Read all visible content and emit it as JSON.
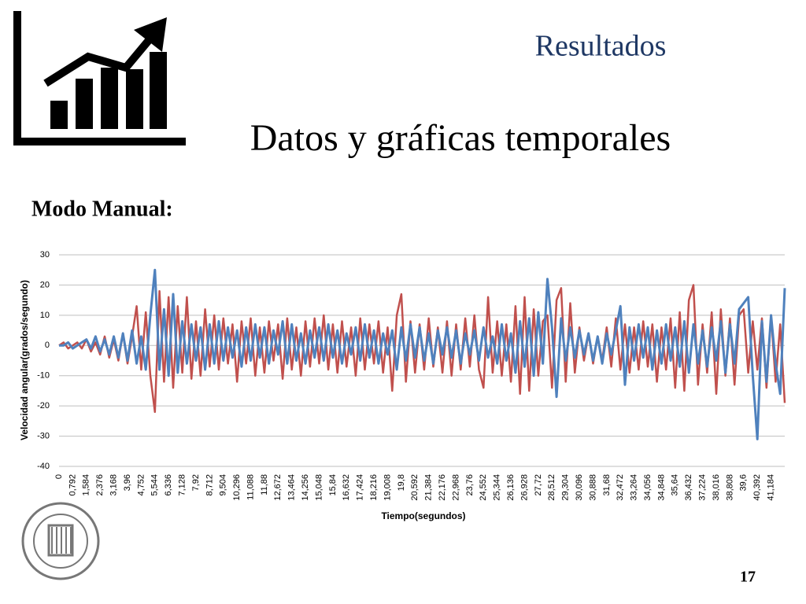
{
  "header": {
    "section": "Resultados",
    "title": "Datos y gráficas temporales",
    "subtitle": "Modo Manual:",
    "page_number": "17"
  },
  "chart_data": {
    "type": "line",
    "x_label": "Tiempo(segundos)",
    "y_label": "Velocidad angular(grados/segundo)",
    "categories": [
      "0",
      null,
      null,
      "0,792",
      null,
      null,
      "1,584",
      null,
      null,
      "2,376",
      null,
      null,
      "3,168",
      null,
      null,
      "3,96",
      null,
      null,
      "4,752",
      null,
      null,
      "5,544",
      null,
      null,
      "6,336",
      null,
      null,
      "7,128",
      null,
      null,
      "7,92",
      null,
      null,
      "8,712",
      null,
      null,
      "9,504",
      null,
      null,
      "10,296",
      null,
      null,
      "11,088",
      null,
      null,
      "11,88",
      null,
      null,
      "12,672",
      null,
      null,
      "13,464",
      null,
      null,
      "14,256",
      null,
      null,
      "15,048",
      null,
      null,
      "15,84",
      null,
      null,
      "16,632",
      null,
      null,
      "17,424",
      null,
      null,
      "18,216",
      null,
      null,
      "19,008",
      null,
      null,
      "19,8",
      null,
      null,
      "20,592",
      null,
      null,
      "21,384",
      null,
      null,
      "22,176",
      null,
      null,
      "22,968",
      null,
      null,
      "23,76",
      null,
      null,
      "24,552",
      null,
      null,
      "25,344",
      null,
      null,
      "26,136",
      null,
      null,
      "26,928",
      null,
      null,
      "27,72",
      null,
      null,
      "28,512",
      null,
      null,
      "29,304",
      null,
      null,
      "30,096",
      null,
      null,
      "30,888",
      null,
      null,
      "31,68",
      null,
      null,
      "32,472",
      null,
      null,
      "33,264",
      null,
      null,
      "34,056",
      null,
      null,
      "34,848",
      null,
      null,
      "35,64",
      null,
      null,
      "36,432",
      null,
      null,
      "37,224",
      null,
      null,
      "38,016",
      null,
      null,
      "38,808",
      null,
      null,
      "39,6",
      null,
      null,
      "40,392",
      null,
      null,
      "41,184",
      null,
      null,
      null
    ],
    "series": [
      {
        "color": "#c0504d",
        "values": [
          0,
          1,
          -1,
          0,
          1,
          -1,
          2,
          -2,
          1,
          -3,
          3,
          -4,
          2,
          -5,
          4,
          -6,
          3,
          13,
          -8,
          11,
          -10,
          -22,
          18,
          -12,
          16,
          -14,
          13,
          -9,
          16,
          -11,
          8,
          -10,
          12,
          -7,
          10,
          -8,
          9,
          -6,
          7,
          -12,
          8,
          -6,
          9,
          -10,
          6,
          -9,
          8,
          -5,
          7,
          -11,
          9,
          -8,
          6,
          -10,
          8,
          -7,
          9,
          -6,
          10,
          -8,
          7,
          -9,
          8,
          -7,
          6,
          -10,
          9,
          -8,
          7,
          -6,
          8,
          -9,
          6,
          -15,
          10,
          17,
          -12,
          8,
          -9,
          7,
          -8,
          9,
          -7,
          6,
          -9,
          8,
          -10,
          7,
          -8,
          9,
          -7,
          10,
          -8,
          -14,
          16,
          -9,
          8,
          -10,
          7,
          -12,
          13,
          -16,
          16,
          -15,
          12,
          -10,
          8,
          10,
          -14,
          15,
          19,
          -12,
          14,
          -9,
          6,
          -5,
          4,
          -6,
          3,
          -5,
          6,
          -7,
          9,
          -8,
          7,
          -9,
          6,
          -8,
          8,
          -7,
          7,
          -12,
          6,
          -8,
          9,
          -14,
          11,
          -15,
          15,
          20,
          -13,
          7,
          -9,
          11,
          -16,
          12,
          -10,
          9,
          -13,
          10,
          12,
          -9,
          8,
          -8,
          9,
          -14,
          10,
          -12,
          7,
          -19
        ]
      },
      {
        "color": "#4f81bd",
        "values": [
          0,
          0,
          1,
          -1,
          0,
          1,
          2,
          -1,
          3,
          -2,
          2,
          -3,
          3,
          -4,
          4,
          -5,
          5,
          -6,
          3,
          -8,
          10,
          25,
          -8,
          12,
          -10,
          17,
          -9,
          8,
          -6,
          7,
          -5,
          6,
          -8,
          7,
          -6,
          8,
          -5,
          6,
          -4,
          5,
          -7,
          6,
          -5,
          7,
          -4,
          6,
          -6,
          5,
          -3,
          8,
          -6,
          7,
          -5,
          4,
          -6,
          5,
          -4,
          6,
          -5,
          7,
          -4,
          5,
          -6,
          4,
          -3,
          6,
          -5,
          7,
          -4,
          5,
          -6,
          4,
          -3,
          5,
          -8,
          6,
          -5,
          7,
          -4,
          6,
          -5,
          4,
          -6,
          5,
          -3,
          6,
          -4,
          5,
          -6,
          4,
          -3,
          5,
          -5,
          6,
          -4,
          3,
          -6,
          7,
          -5,
          4,
          -9,
          8,
          -7,
          9,
          -10,
          11,
          -6,
          22,
          6,
          -17,
          9,
          -5,
          6,
          -4,
          5,
          -3,
          4,
          -5,
          3,
          -6,
          4,
          -3,
          5,
          13,
          -13,
          6,
          -5,
          7,
          -4,
          6,
          -8,
          5,
          -6,
          7,
          -5,
          6,
          -7,
          8,
          -9,
          7,
          -6,
          5,
          -7,
          6,
          -5,
          8,
          -9,
          7,
          -6,
          12,
          14,
          16,
          -10,
          -31,
          8,
          -12,
          10,
          -6,
          -16,
          19
        ]
      }
    ],
    "ylim": [
      -40,
      30
    ],
    "yticks": [
      -40,
      -30,
      -20,
      -10,
      0,
      10,
      20,
      30
    ],
    "grid": true
  }
}
